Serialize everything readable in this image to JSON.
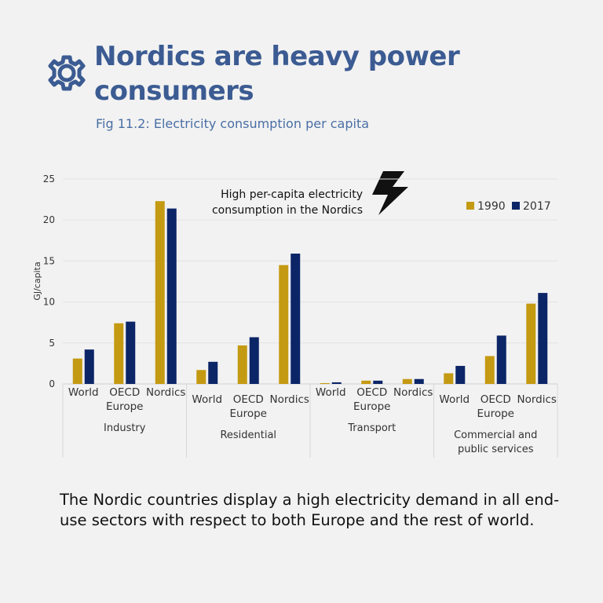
{
  "chart_data": {
    "type": "bar",
    "title": "Nordics are heavy power consumers",
    "subtitle": "Fig 11.2: Electricity consumption per capita",
    "annotation": "High per-capita electricity consumption in the Nordics",
    "y_label": "GJ/capita",
    "groups": [
      {
        "name": "Industry",
        "categories": [
          "World",
          "OECD Europe",
          "Nordics"
        ]
      },
      {
        "name": "Residential",
        "categories": [
          "World",
          "OECD Europe",
          "Nordics"
        ]
      },
      {
        "name": "Transport",
        "categories": [
          "World",
          "OECD Europe",
          "Nordics"
        ]
      },
      {
        "name": "Commercial and public services",
        "categories": [
          "World",
          "OECD Europe",
          "Nordics"
        ]
      }
    ],
    "series": [
      {
        "name": "1990",
        "color": "#c49a12",
        "values": [
          3.1,
          7.4,
          22.3,
          1.7,
          4.7,
          14.5,
          0.1,
          0.4,
          0.6,
          1.3,
          3.4,
          9.8
        ]
      },
      {
        "name": "2017",
        "color": "#0b2567",
        "values": [
          4.2,
          7.6,
          21.4,
          2.7,
          5.7,
          15.9,
          0.2,
          0.4,
          0.6,
          2.2,
          5.9,
          11.1
        ]
      }
    ],
    "ylim": [
      0,
      25
    ],
    "yticks": [
      0,
      5,
      10,
      15,
      20,
      25
    ],
    "grid": true,
    "legend": "top-right"
  },
  "body_text": "The Nordic countries display a high electricity demand in all end-use sectors with respect to both Europe and the rest of world."
}
